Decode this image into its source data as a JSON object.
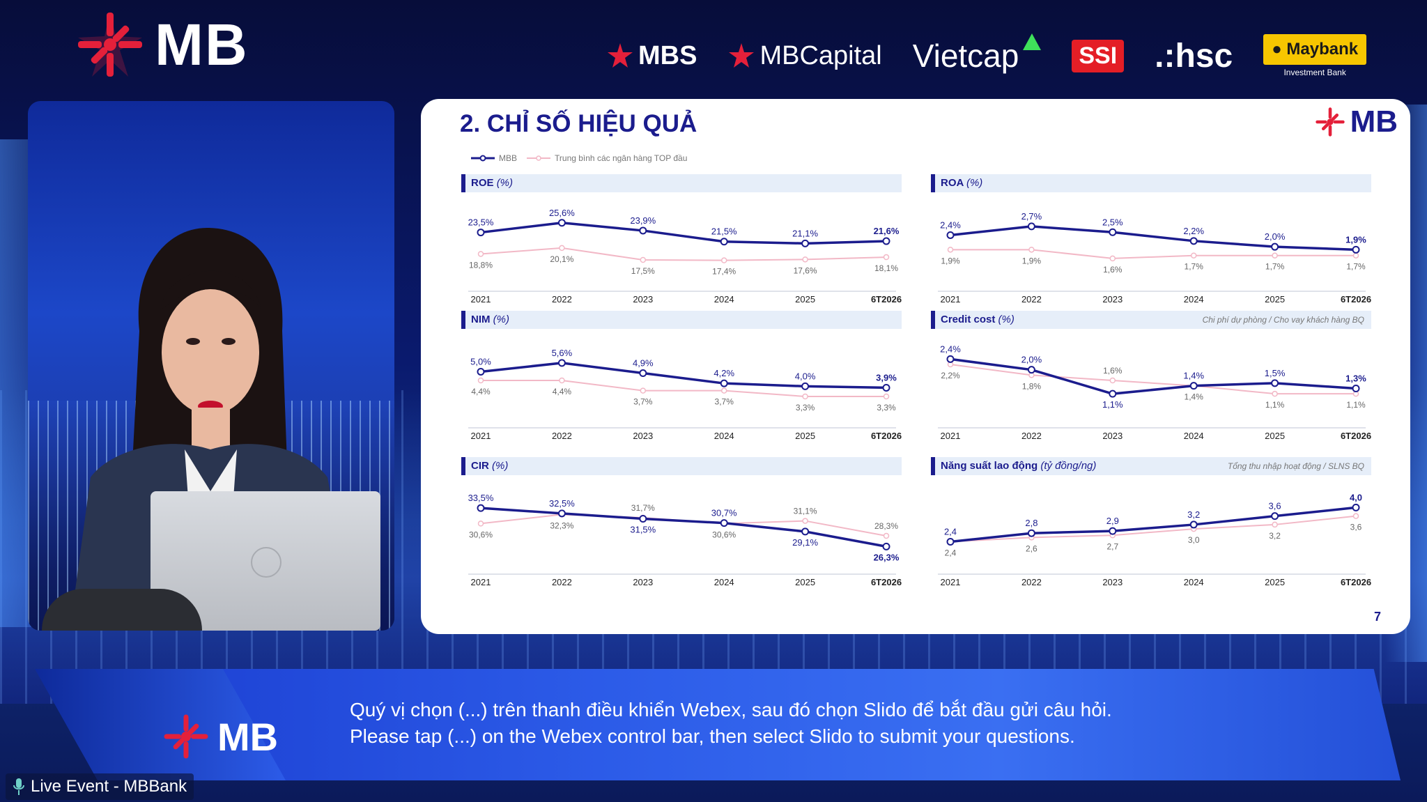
{
  "header": {
    "brand": "MB",
    "partners": [
      "MBS",
      "MBCapital",
      "Vietcap",
      "SSI",
      ".:hsc",
      "Maybank"
    ],
    "maybank_sub": "Investment Bank"
  },
  "slide": {
    "title": "2. CHỈ SỐ HIỆU QUẢ",
    "logo": "MB",
    "page_number": "7",
    "legend": {
      "mbb": "MBB",
      "avg": "Trung bình các ngân hàng TOP đầu"
    },
    "colors": {
      "mbb": "#1b1c8d",
      "avg": "#f2b8c6",
      "header_bg": "#e6eef9"
    }
  },
  "chart_data": [
    {
      "type": "line",
      "title": "ROE",
      "unit": "(%)",
      "note": "",
      "categories": [
        "2021",
        "2022",
        "2023",
        "2024",
        "2025",
        "6T2026"
      ],
      "series": [
        {
          "name": "MBB",
          "values": [
            23.5,
            25.6,
            23.9,
            21.5,
            21.1,
            21.6
          ],
          "labels": [
            "23,5%",
            "25,6%",
            "23,9%",
            "21,5%",
            "21,1%",
            "21,6%"
          ]
        },
        {
          "name": "Trung bình các ngân hàng TOP đầu",
          "values": [
            18.8,
            20.1,
            17.5,
            17.4,
            17.6,
            18.1
          ],
          "labels": [
            "18,8%",
            "20,1%",
            "17,5%",
            "17,4%",
            "17,6%",
            "18,1%"
          ]
        }
      ],
      "ylim": [
        14,
        28
      ]
    },
    {
      "type": "line",
      "title": "ROA",
      "unit": "(%)",
      "note": "",
      "categories": [
        "2021",
        "2022",
        "2023",
        "2024",
        "2025",
        "6T2026"
      ],
      "series": [
        {
          "name": "MBB",
          "values": [
            2.4,
            2.7,
            2.5,
            2.2,
            2.0,
            1.9
          ],
          "labels": [
            "2,4%",
            "2,7%",
            "2,5%",
            "2,2%",
            "2,0%",
            "1,9%"
          ]
        },
        {
          "name": "Trung bình các ngân hàng TOP đầu",
          "values": [
            1.9,
            1.9,
            1.6,
            1.7,
            1.7,
            1.7
          ],
          "labels": [
            "1,9%",
            "1,9%",
            "1,6%",
            "1,7%",
            "1,7%",
            "1,7%"
          ]
        }
      ],
      "ylim": [
        1.0,
        3.2
      ]
    },
    {
      "type": "line",
      "title": "NIM",
      "unit": "(%)",
      "note": "",
      "categories": [
        "2021",
        "2022",
        "2023",
        "2024",
        "2025",
        "6T2026"
      ],
      "series": [
        {
          "name": "MBB",
          "values": [
            5.0,
            5.6,
            4.9,
            4.2,
            4.0,
            3.9
          ],
          "labels": [
            "5,0%",
            "5,6%",
            "4,9%",
            "4,2%",
            "4,0%",
            "3,9%"
          ]
        },
        {
          "name": "Trung bình các ngân hàng TOP đầu",
          "values": [
            4.4,
            4.4,
            3.7,
            3.7,
            3.3,
            3.3
          ],
          "labels": [
            "4,4%",
            "4,4%",
            "3,7%",
            "3,7%",
            "3,3%",
            "3,3%"
          ]
        }
      ],
      "ylim": [
        2.2,
        6.6
      ]
    },
    {
      "type": "line",
      "title": "Credit cost",
      "unit": "(%)",
      "note": "Chi phí dự phòng / Cho vay khách hàng BQ",
      "categories": [
        "2021",
        "2022",
        "2023",
        "2024",
        "2025",
        "6T2026"
      ],
      "series": [
        {
          "name": "MBB",
          "values": [
            2.4,
            2.0,
            1.1,
            1.4,
            1.5,
            1.3
          ],
          "labels": [
            "2,4%",
            "2,0%",
            "1,1%",
            "1,4%",
            "1,5%",
            "1,3%"
          ]
        },
        {
          "name": "Trung bình các ngân hàng TOP đầu",
          "values": [
            2.2,
            1.8,
            1.6,
            1.4,
            1.1,
            1.1
          ],
          "labels": [
            "2,2%",
            "1,8%",
            "1,6%",
            "1,4%",
            "1,1%",
            "1,1%"
          ]
        }
      ],
      "ylim": [
        0.4,
        2.8
      ]
    },
    {
      "type": "line",
      "title": "CIR",
      "unit": "(%)",
      "note": "",
      "categories": [
        "2021",
        "2022",
        "2023",
        "2024",
        "2025",
        "6T2026"
      ],
      "series": [
        {
          "name": "MBB",
          "values": [
            33.5,
            32.5,
            31.5,
            30.7,
            29.1,
            26.3
          ],
          "labels": [
            "33,5%",
            "32,5%",
            "31,5%",
            "30,7%",
            "29,1%",
            "26,3%"
          ]
        },
        {
          "name": "Trung bình các ngân hàng TOP đầu",
          "values": [
            30.6,
            32.3,
            31.7,
            30.6,
            31.1,
            28.3
          ],
          "labels": [
            "30,6%",
            "32,3%",
            "31,7%",
            "30,6%",
            "31,1%",
            "28,3%"
          ]
        }
      ],
      "ylim": [
        24,
        36
      ]
    },
    {
      "type": "line",
      "title": "Năng suất lao động",
      "unit": "(tỷ đồng/ng)",
      "note": "Tổng thu nhập hoạt động / SLNS BQ",
      "categories": [
        "2021",
        "2022",
        "2023",
        "2024",
        "2025",
        "6T2026"
      ],
      "series": [
        {
          "name": "MBB",
          "values": [
            2.4,
            2.8,
            2.9,
            3.2,
            3.6,
            4.0
          ],
          "labels": [
            "2,4",
            "2,8",
            "2,9",
            "3,2",
            "3,6",
            "4,0"
          ]
        },
        {
          "name": "Trung bình các ngân hàng TOP đầu",
          "values": [
            2.4,
            2.6,
            2.7,
            3.0,
            3.2,
            3.6
          ],
          "labels": [
            "2,4",
            "2,6",
            "2,7",
            "3,0",
            "3,2",
            "3,6"
          ]
        }
      ],
      "ylim": [
        1.6,
        4.6
      ]
    }
  ],
  "banner": {
    "logo": "MB",
    "line_vi": "Quý vị chọn (...) trên thanh điều khiển Webex, sau đó chọn Slido để bắt đầu gửi câu hỏi.",
    "line_en": "Please tap (...) on the Webex control bar, then select Slido to submit your questions."
  },
  "status": {
    "live_label": "Live Event - MBBank"
  }
}
